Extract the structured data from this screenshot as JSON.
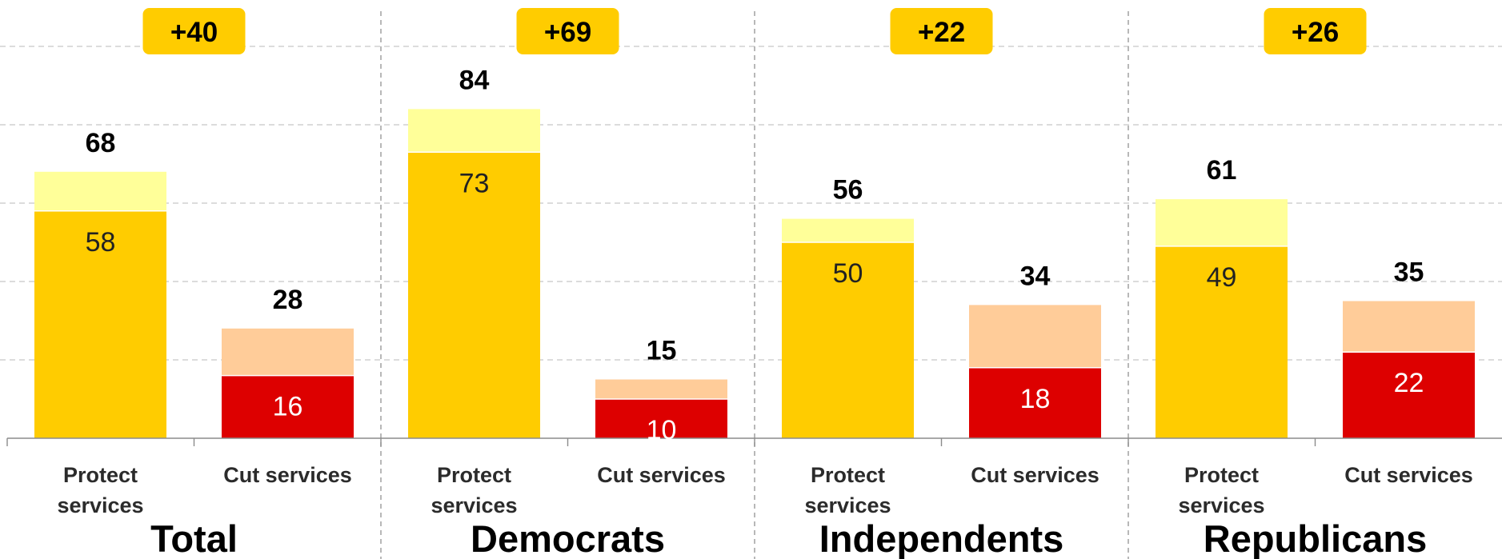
{
  "chart_data": {
    "type": "bar",
    "stacked": true,
    "ylim": [
      0,
      100
    ],
    "grid": true,
    "colors": {
      "protect_strong": "#FFCC00",
      "protect_other": "#FFFF99",
      "cut_strong": "#DD0000",
      "cut_other": "#FFCC99",
      "badge": "#FFCC00"
    },
    "groups": [
      {
        "name": "Total",
        "difference": "+40",
        "bars": [
          {
            "category": "Protect services",
            "total": 68,
            "strong": 58
          },
          {
            "category": "Cut services",
            "total": 28,
            "strong": 16
          }
        ]
      },
      {
        "name": "Democrats",
        "difference": "+69",
        "bars": [
          {
            "category": "Protect services",
            "total": 84,
            "strong": 73
          },
          {
            "category": "Cut services",
            "total": 15,
            "strong": 10
          }
        ]
      },
      {
        "name": "Independents",
        "difference": "+22",
        "bars": [
          {
            "category": "Protect services",
            "total": 56,
            "strong": 50
          },
          {
            "category": "Cut services",
            "total": 34,
            "strong": 18
          }
        ]
      },
      {
        "name": "Republicans",
        "difference": "+26",
        "bars": [
          {
            "category": "Protect services",
            "total": 61,
            "strong": 49
          },
          {
            "category": "Cut services",
            "total": 35,
            "strong": 22
          }
        ]
      }
    ]
  }
}
